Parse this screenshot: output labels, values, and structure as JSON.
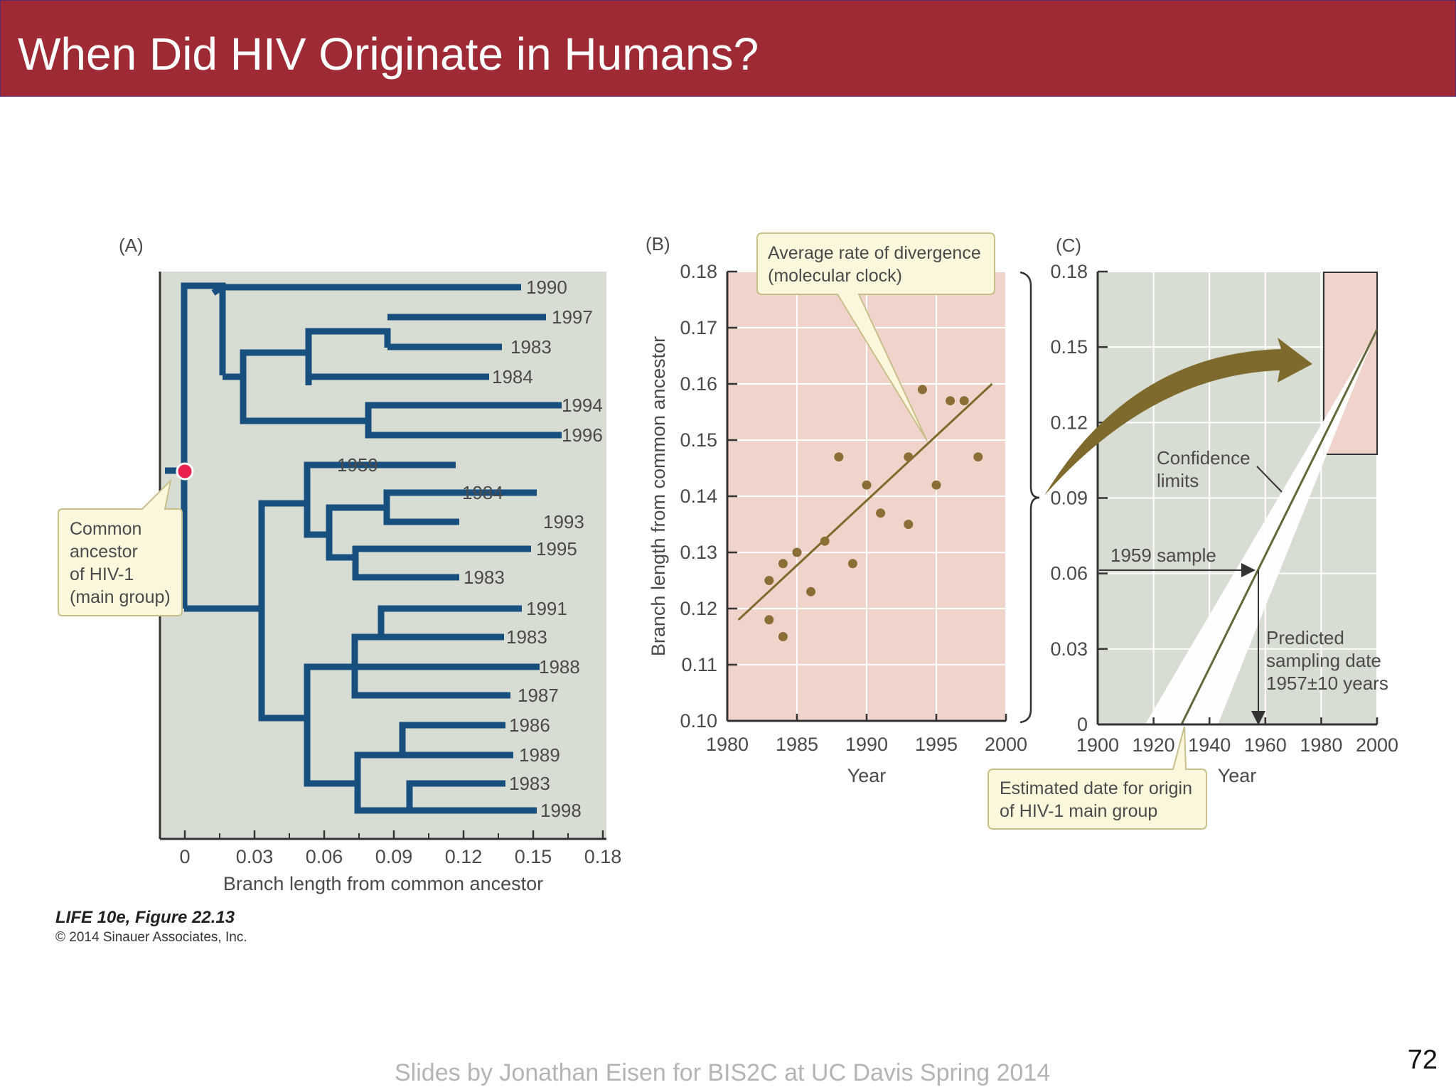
{
  "slide": {
    "title": "When Did HIV Originate in Humans?",
    "footer": "Slides by Jonathan Eisen for BIS2C at UC Davis Spring 2014",
    "page_number": "72"
  },
  "colors": {
    "title_bar": "#9e2a35",
    "tree": "#17507e",
    "panel_bg": "#d8ddd4",
    "pink_bg": "#f0d4cc",
    "point": "#8a6e35",
    "callout": "#fbf7dc",
    "node": "#e8214f"
  },
  "figure": {
    "credit_title": "LIFE 10e, Figure 22.13",
    "credit_copyright": "© 2014 Sinauer Associates, Inc.",
    "panel_a": {
      "label": "(A)",
      "x_ticks": [
        "0",
        "0.03",
        "0.06",
        "0.09",
        "0.12",
        "0.15",
        "0.18"
      ],
      "xlabel": "Branch length from common ancestor",
      "tip_years": [
        "1990",
        "1997",
        "1983",
        "1984",
        "1994",
        "1996",
        "1959",
        "1984",
        "1993",
        "1995",
        "1983",
        "1991",
        "1983",
        "1988",
        "1987",
        "1986",
        "1989",
        "1983",
        "1998"
      ],
      "root_callout": [
        "Common",
        "ancestor",
        "of HIV-1",
        "(main group)"
      ]
    },
    "panel_b": {
      "label": "(B)",
      "callout": [
        "Average rate of divergence",
        "(molecular clock)"
      ]
    },
    "panel_c": {
      "label": "(C)",
      "confidence_label": [
        "Confidence",
        "limits"
      ],
      "sample_label": "1959 sample",
      "predicted_label": [
        "Predicted",
        "sampling date",
        "1957±10 years"
      ],
      "origin_callout": [
        "Estimated date for origin",
        "of HIV-1 main group"
      ]
    }
  },
  "chart_data": [
    {
      "type": "scatter",
      "panel": "(B)",
      "xlabel": "Year",
      "ylabel": "Branch length from common ancestor",
      "xlim": [
        1980,
        2000
      ],
      "ylim": [
        0.1,
        0.18
      ],
      "x_ticks": [
        "1980",
        "1985",
        "1990",
        "1995",
        "2000"
      ],
      "y_ticks": [
        "0.10",
        "0.11",
        "0.12",
        "0.13",
        "0.14",
        "0.15",
        "0.16",
        "0.17",
        "0.18"
      ],
      "points": [
        [
          1983,
          0.118
        ],
        [
          1983,
          0.125
        ],
        [
          1984,
          0.115
        ],
        [
          1984,
          0.128
        ],
        [
          1985,
          0.13
        ],
        [
          1986,
          0.123
        ],
        [
          1987,
          0.132
        ],
        [
          1988,
          0.147
        ],
        [
          1989,
          0.128
        ],
        [
          1990,
          0.142
        ],
        [
          1991,
          0.137
        ],
        [
          1993,
          0.135
        ],
        [
          1993,
          0.147
        ],
        [
          1994,
          0.159
        ],
        [
          1995,
          0.142
        ],
        [
          1996,
          0.157
        ],
        [
          1997,
          0.157
        ],
        [
          1998,
          0.147
        ]
      ],
      "fit_line": [
        [
          1980.8,
          0.118
        ],
        [
          1999,
          0.16
        ]
      ]
    },
    {
      "type": "line",
      "panel": "(C)",
      "xlabel": "Year",
      "xlim": [
        1900,
        2000
      ],
      "ylim": [
        0,
        0.18
      ],
      "x_ticks": [
        "1900",
        "1920",
        "1940",
        "1960",
        "1980",
        "2000"
      ],
      "y_ticks": [
        "0",
        "0.03",
        "0.06",
        "0.09",
        "0.12",
        "0.15",
        "0.18"
      ],
      "regression_line": [
        [
          1930,
          0
        ],
        [
          2000,
          0.157
        ]
      ],
      "confidence_band_lower": [
        [
          1917,
          0
        ],
        [
          2000,
          0.157
        ]
      ],
      "confidence_band_upper": [
        [
          1943,
          0
        ],
        [
          2000,
          0.157
        ]
      ],
      "sample_1959": {
        "branch_length": 0.058,
        "predicted_year": 1957
      }
    }
  ]
}
